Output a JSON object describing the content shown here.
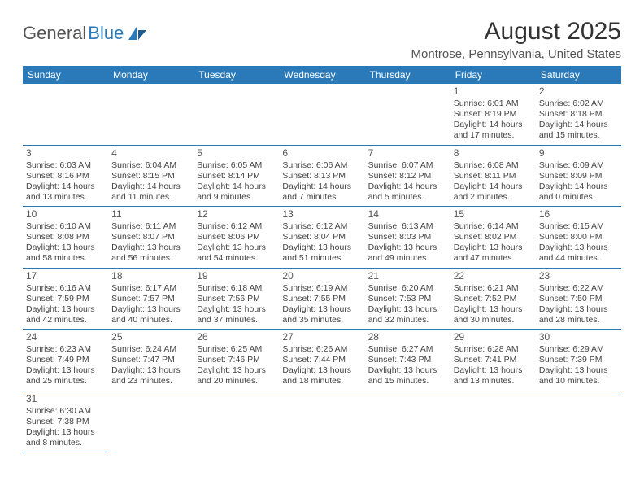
{
  "brand": {
    "general": "General",
    "blue": "Blue"
  },
  "title": "August 2025",
  "location": "Montrose, Pennsylvania, United States",
  "colors": {
    "header_bg": "#2a7ab9",
    "header_text": "#ffffff",
    "border": "#2a7ab9",
    "body_text": "#444444",
    "background": "#ffffff"
  },
  "columns": [
    "Sunday",
    "Monday",
    "Tuesday",
    "Wednesday",
    "Thursday",
    "Friday",
    "Saturday"
  ],
  "weeks": [
    [
      null,
      null,
      null,
      null,
      null,
      {
        "n": "1",
        "sr": "6:01 AM",
        "ss": "8:19 PM",
        "dl": "14 hours and 17 minutes."
      },
      {
        "n": "2",
        "sr": "6:02 AM",
        "ss": "8:18 PM",
        "dl": "14 hours and 15 minutes."
      }
    ],
    [
      {
        "n": "3",
        "sr": "6:03 AM",
        "ss": "8:16 PM",
        "dl": "14 hours and 13 minutes."
      },
      {
        "n": "4",
        "sr": "6:04 AM",
        "ss": "8:15 PM",
        "dl": "14 hours and 11 minutes."
      },
      {
        "n": "5",
        "sr": "6:05 AM",
        "ss": "8:14 PM",
        "dl": "14 hours and 9 minutes."
      },
      {
        "n": "6",
        "sr": "6:06 AM",
        "ss": "8:13 PM",
        "dl": "14 hours and 7 minutes."
      },
      {
        "n": "7",
        "sr": "6:07 AM",
        "ss": "8:12 PM",
        "dl": "14 hours and 5 minutes."
      },
      {
        "n": "8",
        "sr": "6:08 AM",
        "ss": "8:11 PM",
        "dl": "14 hours and 2 minutes."
      },
      {
        "n": "9",
        "sr": "6:09 AM",
        "ss": "8:09 PM",
        "dl": "14 hours and 0 minutes."
      }
    ],
    [
      {
        "n": "10",
        "sr": "6:10 AM",
        "ss": "8:08 PM",
        "dl": "13 hours and 58 minutes."
      },
      {
        "n": "11",
        "sr": "6:11 AM",
        "ss": "8:07 PM",
        "dl": "13 hours and 56 minutes."
      },
      {
        "n": "12",
        "sr": "6:12 AM",
        "ss": "8:06 PM",
        "dl": "13 hours and 54 minutes."
      },
      {
        "n": "13",
        "sr": "6:12 AM",
        "ss": "8:04 PM",
        "dl": "13 hours and 51 minutes."
      },
      {
        "n": "14",
        "sr": "6:13 AM",
        "ss": "8:03 PM",
        "dl": "13 hours and 49 minutes."
      },
      {
        "n": "15",
        "sr": "6:14 AM",
        "ss": "8:02 PM",
        "dl": "13 hours and 47 minutes."
      },
      {
        "n": "16",
        "sr": "6:15 AM",
        "ss": "8:00 PM",
        "dl": "13 hours and 44 minutes."
      }
    ],
    [
      {
        "n": "17",
        "sr": "6:16 AM",
        "ss": "7:59 PM",
        "dl": "13 hours and 42 minutes."
      },
      {
        "n": "18",
        "sr": "6:17 AM",
        "ss": "7:57 PM",
        "dl": "13 hours and 40 minutes."
      },
      {
        "n": "19",
        "sr": "6:18 AM",
        "ss": "7:56 PM",
        "dl": "13 hours and 37 minutes."
      },
      {
        "n": "20",
        "sr": "6:19 AM",
        "ss": "7:55 PM",
        "dl": "13 hours and 35 minutes."
      },
      {
        "n": "21",
        "sr": "6:20 AM",
        "ss": "7:53 PM",
        "dl": "13 hours and 32 minutes."
      },
      {
        "n": "22",
        "sr": "6:21 AM",
        "ss": "7:52 PM",
        "dl": "13 hours and 30 minutes."
      },
      {
        "n": "23",
        "sr": "6:22 AM",
        "ss": "7:50 PM",
        "dl": "13 hours and 28 minutes."
      }
    ],
    [
      {
        "n": "24",
        "sr": "6:23 AM",
        "ss": "7:49 PM",
        "dl": "13 hours and 25 minutes."
      },
      {
        "n": "25",
        "sr": "6:24 AM",
        "ss": "7:47 PM",
        "dl": "13 hours and 23 minutes."
      },
      {
        "n": "26",
        "sr": "6:25 AM",
        "ss": "7:46 PM",
        "dl": "13 hours and 20 minutes."
      },
      {
        "n": "27",
        "sr": "6:26 AM",
        "ss": "7:44 PM",
        "dl": "13 hours and 18 minutes."
      },
      {
        "n": "28",
        "sr": "6:27 AM",
        "ss": "7:43 PM",
        "dl": "13 hours and 15 minutes."
      },
      {
        "n": "29",
        "sr": "6:28 AM",
        "ss": "7:41 PM",
        "dl": "13 hours and 13 minutes."
      },
      {
        "n": "30",
        "sr": "6:29 AM",
        "ss": "7:39 PM",
        "dl": "13 hours and 10 minutes."
      }
    ],
    [
      {
        "n": "31",
        "sr": "6:30 AM",
        "ss": "7:38 PM",
        "dl": "13 hours and 8 minutes."
      },
      null,
      null,
      null,
      null,
      null,
      null
    ]
  ],
  "labels": {
    "sunrise": "Sunrise: ",
    "sunset": "Sunset: ",
    "daylight": "Daylight: "
  }
}
